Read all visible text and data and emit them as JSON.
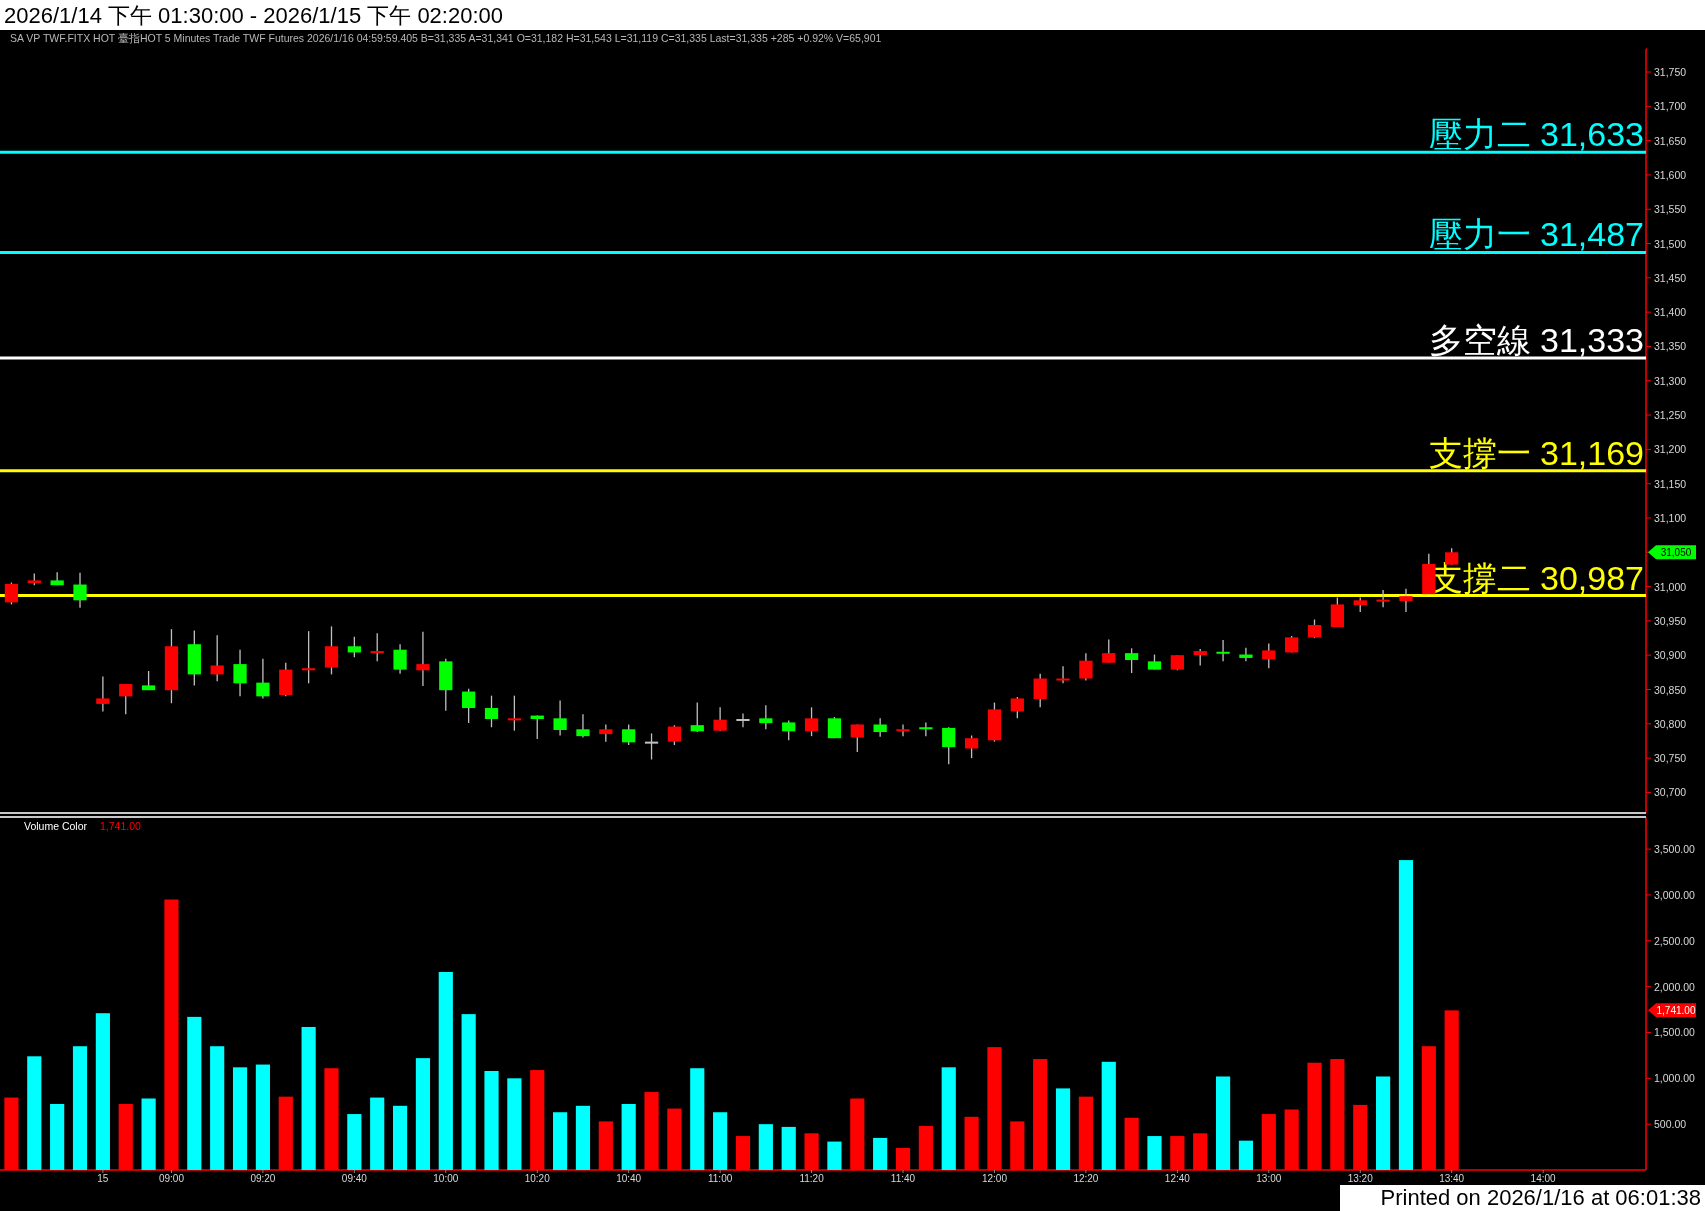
{
  "chart_data": [
    {
      "type": "candlestick",
      "title": "2026/1/14 下午 01:30:00 - 2026/1/15 下午 02:20:00",
      "subtitle": "SA  VP  TWF.FITX HOT  臺指HOT  5 Minutes  Trade  TWF  Futures  2026/1/16  04:59:59.405  B=31,335  A=31,341  O=31,182  H=31,543  L=31,119  C=31,335  Last=31,335  +285  +0.92%  V=65,901",
      "categories": [
        null,
        null,
        null,
        null,
        null,
        null,
        null,
        null,
        null,
        null,
        null,
        null,
        null,
        null,
        null,
        null,
        null,
        null,
        null,
        null,
        null,
        null,
        null,
        null,
        null,
        null,
        null,
        null,
        null,
        null,
        null,
        null,
        null,
        null,
        null,
        null,
        null,
        null,
        null,
        null,
        null,
        null,
        null,
        null,
        null,
        null,
        null,
        null,
        null,
        null,
        null,
        null,
        null,
        null,
        null,
        null,
        null,
        null,
        null,
        null,
        null,
        null,
        null,
        null,
        null,
        null,
        null,
        null,
        null,
        null,
        null,
        null
      ],
      "ohlc": [
        [
          30977,
          31006,
          30974,
          31004
        ],
        [
          31005,
          31019,
          31002,
          31009
        ],
        [
          31009,
          31021,
          31002,
          31002
        ],
        [
          31003,
          31020,
          30969,
          30980
        ],
        [
          30829,
          30869,
          30818,
          30837
        ],
        [
          30840,
          30858,
          30814,
          30858
        ],
        [
          30856,
          30877,
          30849,
          30849
        ],
        [
          30849,
          30938,
          30830,
          30913
        ],
        [
          30916,
          30936,
          30856,
          30872
        ],
        [
          30872,
          30929,
          30862,
          30885
        ],
        [
          30887,
          30908,
          30840,
          30859
        ],
        [
          30860,
          30895,
          30837,
          30840
        ],
        [
          30842,
          30889,
          30840,
          30879
        ],
        [
          30878,
          30935,
          30859,
          30881
        ],
        [
          30882,
          30942,
          30872,
          30913
        ],
        [
          30913,
          30927,
          30897,
          30904
        ],
        [
          30903,
          30932,
          30891,
          30906
        ],
        [
          30908,
          30916,
          30873,
          30879
        ],
        [
          30878,
          30934,
          30855,
          30887
        ],
        [
          30891,
          30895,
          30819,
          30849
        ],
        [
          30847,
          30851,
          30801,
          30823
        ],
        [
          30823,
          30841,
          30795,
          30807
        ],
        [
          30805,
          30841,
          30790,
          30808
        ],
        [
          30812,
          30812,
          30778,
          30807
        ],
        [
          30808,
          30834,
          30783,
          30791
        ],
        [
          30792,
          30814,
          30780,
          30782
        ],
        [
          30785,
          30799,
          30774,
          30792
        ],
        [
          30792,
          30799,
          30769,
          30773
        ],
        [
          30774,
          30786,
          30748,
          30774
        ],
        [
          30774,
          30798,
          30769,
          30796
        ],
        [
          30798,
          30831,
          30788,
          30789
        ],
        [
          30790,
          30824,
          30789,
          30806
        ],
        [
          30807,
          30815,
          30795,
          30807
        ],
        [
          30808,
          30827,
          30792,
          30801
        ],
        [
          30802,
          30805,
          30776,
          30789
        ],
        [
          30789,
          30824,
          30782,
          30808
        ],
        [
          30808,
          30810,
          30779,
          30779
        ],
        [
          30780,
          30799,
          30759,
          30799
        ],
        [
          30799,
          30808,
          30781,
          30788
        ],
        [
          30789,
          30799,
          30782,
          30792
        ],
        [
          30795,
          30802,
          30782,
          30792
        ],
        [
          30794,
          30795,
          30741,
          30766
        ],
        [
          30764,
          30783,
          30750,
          30779
        ],
        [
          30776,
          30831,
          30774,
          30821
        ],
        [
          30818,
          30839,
          30808,
          30837
        ],
        [
          30836,
          30873,
          30824,
          30866
        ],
        [
          30864,
          30884,
          30859,
          30866
        ],
        [
          30866,
          30903,
          30863,
          30892
        ],
        [
          30889,
          30923,
          30889,
          30903
        ],
        [
          30903,
          30910,
          30874,
          30893
        ],
        [
          30891,
          30901,
          30879,
          30879
        ],
        [
          30879,
          30900,
          30878,
          30900
        ],
        [
          30900,
          30909,
          30885,
          30906
        ],
        [
          30905,
          30922,
          30891,
          30903
        ],
        [
          30901,
          30911,
          30891,
          30896
        ],
        [
          30894,
          30917,
          30881,
          30907
        ],
        [
          30904,
          30928,
          30904,
          30926
        ],
        [
          30926,
          30952,
          30925,
          30944
        ],
        [
          30941,
          30984,
          30941,
          30974
        ],
        [
          30973,
          30984,
          30963,
          30980
        ],
        [
          30979,
          30995,
          30970,
          30981
        ],
        [
          30979,
          30997,
          30963,
          30986
        ],
        [
          30989,
          31048,
          30989,
          31033
        ],
        [
          31032,
          31056,
          31032,
          31050
        ],
        null,
        null,
        null,
        null,
        null,
        null,
        null,
        null
      ],
      "colors": [
        "#ff0000",
        "#ff0000",
        "#00ff00",
        "#00ff00",
        "#ff0000",
        "#ff0000",
        "#00ff00",
        "#ff0000",
        "#00ff00",
        "#ff0000",
        "#00ff00",
        "#00ff00",
        "#ff0000",
        "#ff0000",
        "#ff0000",
        "#00ff00",
        "#ff0000",
        "#00ff00",
        "#ff0000",
        "#00ff00",
        "#00ff00",
        "#00ff00",
        "#ff0000",
        "#00ff00",
        "#00ff00",
        "#00ff00",
        "#ff0000",
        "#00ff00",
        "#c0c0c0",
        "#ff0000",
        "#00ff00",
        "#ff0000",
        "#c0c0c0",
        "#00ff00",
        "#00ff00",
        "#ff0000",
        "#00ff00",
        "#ff0000",
        "#00ff00",
        "#ff0000",
        "#00ff00",
        "#00ff00",
        "#ff0000",
        "#ff0000",
        "#ff0000",
        "#ff0000",
        "#ff0000",
        "#ff0000",
        "#ff0000",
        "#00ff00",
        "#00ff00",
        "#ff0000",
        "#ff0000",
        "#00ff00",
        "#00ff00",
        "#ff0000",
        "#ff0000",
        "#ff0000",
        "#ff0000",
        "#ff0000",
        "#ff0000",
        "#ff0000",
        "#ff0000",
        "#ff0000",
        null,
        null,
        null,
        null,
        null,
        null,
        null,
        null
      ],
      "ylim": [
        30670,
        31785
      ],
      "yticks": [
        {
          "value": 30700,
          "label": "30,700"
        },
        {
          "value": 30750,
          "label": "30,750"
        },
        {
          "value": 30800,
          "label": "30,800"
        },
        {
          "value": 30850,
          "label": "30,850"
        },
        {
          "value": 30900,
          "label": "30,900"
        },
        {
          "value": 30950,
          "label": "30,950"
        },
        {
          "value": 31000,
          "label": "31,000"
        },
        {
          "value": 31050,
          "label": null
        },
        {
          "value": 31100,
          "label": "31,100"
        },
        {
          "value": 31150,
          "label": "31,150"
        },
        {
          "value": 31200,
          "label": "31,200"
        },
        {
          "value": 31250,
          "label": "31,250"
        },
        {
          "value": 31300,
          "label": "31,300"
        },
        {
          "value": 31350,
          "label": "31,350"
        },
        {
          "value": 31400,
          "label": "31,400"
        },
        {
          "value": 31450,
          "label": "31,450"
        },
        {
          "value": 31500,
          "label": "31,500"
        },
        {
          "value": 31550,
          "label": "31,550"
        },
        {
          "value": 31600,
          "label": "31,600"
        },
        {
          "value": 31650,
          "label": "31,650"
        },
        {
          "value": 31700,
          "label": "31,700"
        },
        {
          "value": 31750,
          "label": "31,750"
        }
      ],
      "ref_lines": [
        {
          "axis": "y",
          "value": 31633,
          "label": "壓力二 31,633",
          "color": "#00ffff"
        },
        {
          "axis": "y",
          "value": 31487,
          "label": "壓力一 31,487",
          "color": "#00ffff"
        },
        {
          "axis": "y",
          "value": 31333,
          "label": "多空線 31,333",
          "color": "#ffffff"
        },
        {
          "axis": "y",
          "value": 31169,
          "label": "支撐一 31,169",
          "color": "#ffff00"
        },
        {
          "axis": "y",
          "value": 30987,
          "label": "支撐二 30,987",
          "color": "#ffff00"
        }
      ],
      "annotations": [
        "31,050"
      ]
    },
    {
      "type": "bar",
      "title": "Volume Color",
      "subtitle": "1,741.00",
      "categories": [
        null,
        null,
        null,
        null,
        "15",
        null,
        null,
        "09:00",
        null,
        null,
        null,
        "09:20",
        null,
        null,
        null,
        "09:40",
        null,
        null,
        null,
        "10:00",
        null,
        null,
        null,
        "10:20",
        null,
        null,
        null,
        "10:40",
        null,
        null,
        null,
        "11:00",
        null,
        null,
        null,
        "11:20",
        null,
        null,
        null,
        "11:40",
        null,
        null,
        null,
        "12:00",
        null,
        null,
        null,
        "12:20",
        null,
        null,
        null,
        "12:40",
        null,
        null,
        null,
        "13:00",
        null,
        null,
        null,
        "13:20",
        null,
        null,
        null,
        "13:40",
        null,
        null,
        null,
        "14:00",
        null,
        null,
        null,
        null
      ],
      "values": [
        790,
        1240,
        720,
        1350,
        1710,
        720,
        780,
        2950,
        1670,
        1350,
        1120,
        1150,
        800,
        1560,
        1110,
        610,
        790,
        700,
        1220,
        2160,
        1700,
        1080,
        1000,
        1090,
        630,
        700,
        530,
        720,
        850,
        670,
        1110,
        630,
        370,
        500,
        470,
        400,
        310,
        780,
        350,
        240,
        480,
        1120,
        580,
        1340,
        530,
        1210,
        890,
        800,
        1180,
        570,
        370,
        370,
        400,
        1020,
        320,
        610,
        660,
        1170,
        1210,
        710,
        1020,
        3380,
        1350,
        1741,
        null,
        null,
        null,
        null,
        null,
        null,
        null,
        null
      ],
      "colors": [
        "#ff0000",
        "#00ffff",
        "#00ffff",
        "#00ffff",
        "#00ffff",
        "#ff0000",
        "#00ffff",
        "#ff0000",
        "#00ffff",
        "#00ffff",
        "#00ffff",
        "#00ffff",
        "#ff0000",
        "#00ffff",
        "#ff0000",
        "#00ffff",
        "#00ffff",
        "#00ffff",
        "#00ffff",
        "#00ffff",
        "#00ffff",
        "#00ffff",
        "#00ffff",
        "#ff0000",
        "#00ffff",
        "#00ffff",
        "#ff0000",
        "#00ffff",
        "#ff0000",
        "#ff0000",
        "#00ffff",
        "#00ffff",
        "#ff0000",
        "#00ffff",
        "#00ffff",
        "#ff0000",
        "#00ffff",
        "#ff0000",
        "#00ffff",
        "#ff0000",
        "#ff0000",
        "#00ffff",
        "#ff0000",
        "#ff0000",
        "#ff0000",
        "#ff0000",
        "#00ffff",
        "#ff0000",
        "#00ffff",
        "#ff0000",
        "#00ffff",
        "#ff0000",
        "#ff0000",
        "#00ffff",
        "#00ffff",
        "#ff0000",
        "#ff0000",
        "#ff0000",
        "#ff0000",
        "#ff0000",
        "#00ffff",
        "#00ffff",
        "#ff0000",
        "#ff0000",
        null,
        null,
        null,
        null,
        null,
        null,
        null,
        null
      ],
      "ylim": [
        0,
        3850
      ],
      "yticks": [
        {
          "value": 500,
          "label": "500.00"
        },
        {
          "value": 1000,
          "label": "1,000.00"
        },
        {
          "value": 1500,
          "label": "1,500.00"
        },
        {
          "value": 2000,
          "label": "2,000.00"
        },
        {
          "value": 2500,
          "label": "2,500.00"
        },
        {
          "value": 3000,
          "label": "3,000.00"
        },
        {
          "value": 3500,
          "label": "3,500.00"
        }
      ],
      "annotations": [
        "1,741.00",
        "Printed on 2026/1/16 at 06:01:38"
      ]
    }
  ]
}
